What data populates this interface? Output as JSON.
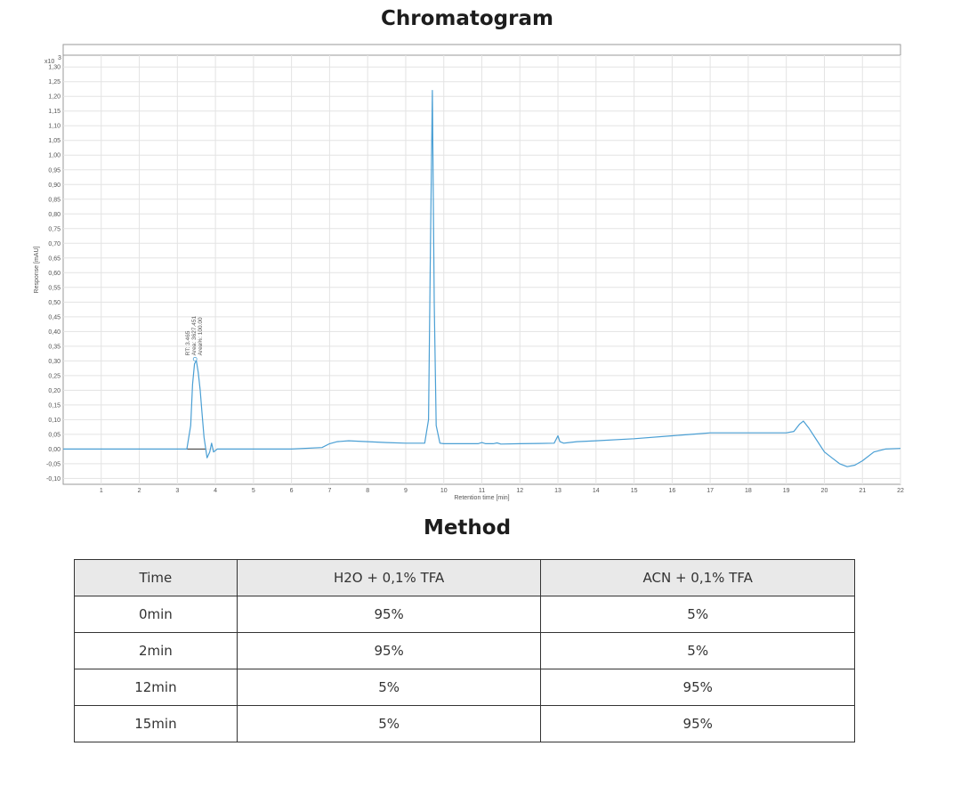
{
  "chart_title": "Chromatogram",
  "method_title": "Method",
  "chart_data": {
    "type": "line",
    "title": "Chromatogram",
    "xlabel": "Retention time [min]",
    "ylabel": "Response [mAU]",
    "y_multiplier_label": "x10",
    "y_multiplier_exp": "3",
    "xlim": [
      0,
      22
    ],
    "ylim": [
      -0.12,
      1.34
    ],
    "x_ticks": [
      1,
      2,
      3,
      4,
      5,
      6,
      7,
      8,
      9,
      10,
      11,
      12,
      13,
      14,
      15,
      16,
      17,
      18,
      19,
      20,
      21,
      22
    ],
    "y_ticks": [
      -0.1,
      -0.05,
      0.0,
      0.05,
      0.1,
      0.15,
      0.2,
      0.25,
      0.3,
      0.35,
      0.4,
      0.45,
      0.5,
      0.55,
      0.6,
      0.65,
      0.7,
      0.75,
      0.8,
      0.85,
      0.9,
      0.95,
      1.0,
      1.05,
      1.1,
      1.15,
      1.2,
      1.25,
      1.3
    ],
    "y_tick_labels": [
      "-0,10",
      "-0,05",
      "0,00",
      "0,05",
      "0,10",
      "0,15",
      "0,20",
      "0,25",
      "0,30",
      "0,35",
      "0,40",
      "0,45",
      "0,50",
      "0,55",
      "0,60",
      "0,65",
      "0,70",
      "0,75",
      "0,80",
      "0,85",
      "0,90",
      "0,95",
      "1,00",
      "1,05",
      "1,10",
      "1,15",
      "1,20",
      "1,25",
      "1,30"
    ],
    "grid": true,
    "series": [
      {
        "color": "#4a9fd4",
        "x": [
          0,
          3.25,
          3.35,
          3.4,
          3.45,
          3.5,
          3.55,
          3.6,
          3.65,
          3.7,
          3.78,
          3.85,
          3.9,
          3.95,
          4.05,
          5.0,
          6.0,
          6.8,
          7.0,
          7.2,
          7.5,
          8.0,
          8.5,
          9.0,
          9.5,
          9.6,
          9.65,
          9.7,
          9.75,
          9.8,
          9.9,
          10.0,
          10.5,
          10.9,
          11.0,
          11.1,
          11.3,
          11.4,
          11.5,
          12.0,
          12.5,
          12.9,
          13.0,
          13.05,
          13.15,
          13.5,
          14.0,
          15.0,
          16.0,
          16.5,
          17.0,
          18.0,
          19.0,
          19.2,
          19.35,
          19.45,
          19.6,
          19.8,
          20.0,
          20.2,
          20.4,
          20.6,
          20.8,
          21.0,
          21.3,
          21.6,
          22.0
        ],
        "y": [
          0,
          0,
          0.08,
          0.22,
          0.29,
          0.3,
          0.26,
          0.2,
          0.12,
          0.04,
          -0.03,
          -0.01,
          0.02,
          -0.01,
          0,
          0,
          0,
          0.005,
          0.018,
          0.025,
          0.028,
          0.025,
          0.022,
          0.02,
          0.02,
          0.1,
          0.7,
          1.22,
          0.5,
          0.08,
          0.02,
          0.018,
          0.018,
          0.018,
          0.022,
          0.018,
          0.018,
          0.021,
          0.017,
          0.018,
          0.019,
          0.02,
          0.045,
          0.025,
          0.02,
          0.025,
          0.028,
          0.035,
          0.045,
          0.05,
          0.055,
          0.055,
          0.055,
          0.06,
          0.085,
          0.095,
          0.07,
          0.03,
          -0.01,
          -0.03,
          -0.05,
          -0.06,
          -0.055,
          -0.04,
          -0.01,
          0,
          0.002
        ]
      }
    ],
    "peak_annotation": {
      "x": 3.465,
      "y": 0.3,
      "lines": [
        "RT: 3.465",
        "Area: 3627.451",
        "Area%: 100.00"
      ]
    }
  },
  "method_table": {
    "headers": [
      "Time",
      "H2O + 0,1% TFA",
      "ACN + 0,1% TFA"
    ],
    "rows": [
      [
        "0min",
        "95%",
        "5%"
      ],
      [
        "2min",
        "95%",
        "5%"
      ],
      [
        "12min",
        "5%",
        "95%"
      ],
      [
        "15min",
        "5%",
        "95%"
      ]
    ]
  }
}
